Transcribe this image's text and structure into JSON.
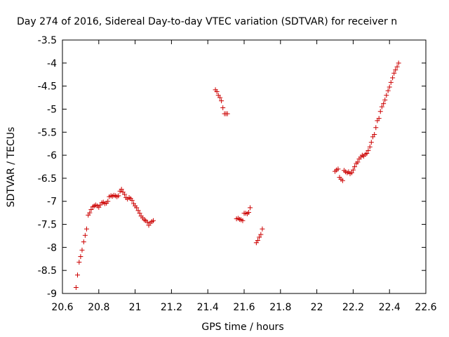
{
  "chart_data": {
    "type": "scatter",
    "title": "Day 274 of 2016, Sidereal Day-to-day VTEC variation (SDTVAR) for receiver n",
    "xlabel": "GPS time / hours",
    "ylabel": "SDTVAR / TECUs",
    "xlim": [
      20.6,
      22.6
    ],
    "ylim": [
      -9,
      -3.5
    ],
    "xticks": [
      20.6,
      20.8,
      21,
      21.2,
      21.4,
      21.6,
      21.8,
      22,
      22.2,
      22.4,
      22.6
    ],
    "xtick_labels": [
      "20.6",
      "20.8",
      "21",
      "21.2",
      "21.4",
      "21.6",
      "21.8",
      "22",
      "22.2",
      "22.4",
      "22.6"
    ],
    "yticks": [
      -3.5,
      -4,
      -4.5,
      -5,
      -5.5,
      -6,
      -6.5,
      -7,
      -7.5,
      -8,
      -8.5,
      -9
    ],
    "ytick_labels": [
      "-3.5",
      "-4",
      "-4.5",
      "-5",
      "-5.5",
      "-6",
      "-6.5",
      "-7",
      "-7.5",
      "-8",
      "-8.5",
      "-9"
    ],
    "grid": false,
    "marker": "+",
    "series": [
      {
        "name": "SDTVAR",
        "color": "#cc0000",
        "points": [
          [
            20.675,
            -8.87
          ],
          [
            20.683,
            -8.6
          ],
          [
            20.692,
            -8.32
          ],
          [
            20.7,
            -8.2
          ],
          [
            20.708,
            -8.06
          ],
          [
            20.717,
            -7.88
          ],
          [
            20.725,
            -7.74
          ],
          [
            20.733,
            -7.6
          ],
          [
            20.742,
            -7.3
          ],
          [
            20.75,
            -7.25
          ],
          [
            20.758,
            -7.18
          ],
          [
            20.767,
            -7.12
          ],
          [
            20.775,
            -7.1
          ],
          [
            20.783,
            -7.08
          ],
          [
            20.792,
            -7.1
          ],
          [
            20.8,
            -7.13
          ],
          [
            20.808,
            -7.08
          ],
          [
            20.817,
            -7.03
          ],
          [
            20.825,
            -7.02
          ],
          [
            20.833,
            -7.05
          ],
          [
            20.842,
            -7.04
          ],
          [
            20.85,
            -7.0
          ],
          [
            20.858,
            -6.9
          ],
          [
            20.867,
            -6.88
          ],
          [
            20.875,
            -6.89
          ],
          [
            20.883,
            -6.87
          ],
          [
            20.892,
            -6.88
          ],
          [
            20.9,
            -6.9
          ],
          [
            20.908,
            -6.88
          ],
          [
            20.917,
            -6.78
          ],
          [
            20.925,
            -6.74
          ],
          [
            20.933,
            -6.8
          ],
          [
            20.942,
            -6.85
          ],
          [
            20.95,
            -6.92
          ],
          [
            20.958,
            -6.95
          ],
          [
            20.967,
            -6.92
          ],
          [
            20.975,
            -6.94
          ],
          [
            20.983,
            -6.98
          ],
          [
            20.992,
            -7.05
          ],
          [
            21.0,
            -7.1
          ],
          [
            21.008,
            -7.14
          ],
          [
            21.017,
            -7.2
          ],
          [
            21.025,
            -7.26
          ],
          [
            21.033,
            -7.32
          ],
          [
            21.042,
            -7.36
          ],
          [
            21.05,
            -7.4
          ],
          [
            21.058,
            -7.42
          ],
          [
            21.067,
            -7.45
          ],
          [
            21.075,
            -7.52
          ],
          [
            21.083,
            -7.47
          ],
          [
            21.092,
            -7.44
          ],
          [
            21.1,
            -7.42
          ],
          [
            21.442,
            -4.58
          ],
          [
            21.45,
            -4.62
          ],
          [
            21.458,
            -4.7
          ],
          [
            21.467,
            -4.75
          ],
          [
            21.475,
            -4.82
          ],
          [
            21.483,
            -4.97
          ],
          [
            21.492,
            -5.1
          ],
          [
            21.5,
            -5.1
          ],
          [
            21.508,
            -5.1
          ],
          [
            21.558,
            -7.38
          ],
          [
            21.567,
            -7.37
          ],
          [
            21.575,
            -7.39
          ],
          [
            21.583,
            -7.4
          ],
          [
            21.592,
            -7.42
          ],
          [
            21.6,
            -7.26
          ],
          [
            21.608,
            -7.26
          ],
          [
            21.617,
            -7.27
          ],
          [
            21.625,
            -7.24
          ],
          [
            21.633,
            -7.14
          ],
          [
            21.667,
            -7.9
          ],
          [
            21.675,
            -7.85
          ],
          [
            21.683,
            -7.78
          ],
          [
            21.692,
            -7.72
          ],
          [
            21.7,
            -7.6
          ],
          [
            22.1,
            -6.35
          ],
          [
            22.108,
            -6.32
          ],
          [
            22.117,
            -6.3
          ],
          [
            22.125,
            -6.48
          ],
          [
            22.133,
            -6.52
          ],
          [
            22.142,
            -6.55
          ],
          [
            22.15,
            -6.33
          ],
          [
            22.158,
            -6.36
          ],
          [
            22.167,
            -6.38
          ],
          [
            22.175,
            -6.36
          ],
          [
            22.183,
            -6.4
          ],
          [
            22.192,
            -6.38
          ],
          [
            22.2,
            -6.32
          ],
          [
            22.208,
            -6.25
          ],
          [
            22.217,
            -6.18
          ],
          [
            22.225,
            -6.15
          ],
          [
            22.233,
            -6.08
          ],
          [
            22.242,
            -6.04
          ],
          [
            22.25,
            -6.0
          ],
          [
            22.258,
            -6.02
          ],
          [
            22.267,
            -5.98
          ],
          [
            22.275,
            -5.96
          ],
          [
            22.283,
            -5.9
          ],
          [
            22.292,
            -5.82
          ],
          [
            22.3,
            -5.72
          ],
          [
            22.308,
            -5.6
          ],
          [
            22.317,
            -5.55
          ],
          [
            22.325,
            -5.4
          ],
          [
            22.333,
            -5.25
          ],
          [
            22.342,
            -5.2
          ],
          [
            22.35,
            -5.05
          ],
          [
            22.358,
            -4.95
          ],
          [
            22.367,
            -4.88
          ],
          [
            22.375,
            -4.8
          ],
          [
            22.383,
            -4.7
          ],
          [
            22.392,
            -4.6
          ],
          [
            22.4,
            -4.52
          ],
          [
            22.408,
            -4.42
          ],
          [
            22.417,
            -4.32
          ],
          [
            22.425,
            -4.22
          ],
          [
            22.433,
            -4.15
          ],
          [
            22.442,
            -4.08
          ],
          [
            22.45,
            -4.0
          ]
        ]
      }
    ]
  }
}
